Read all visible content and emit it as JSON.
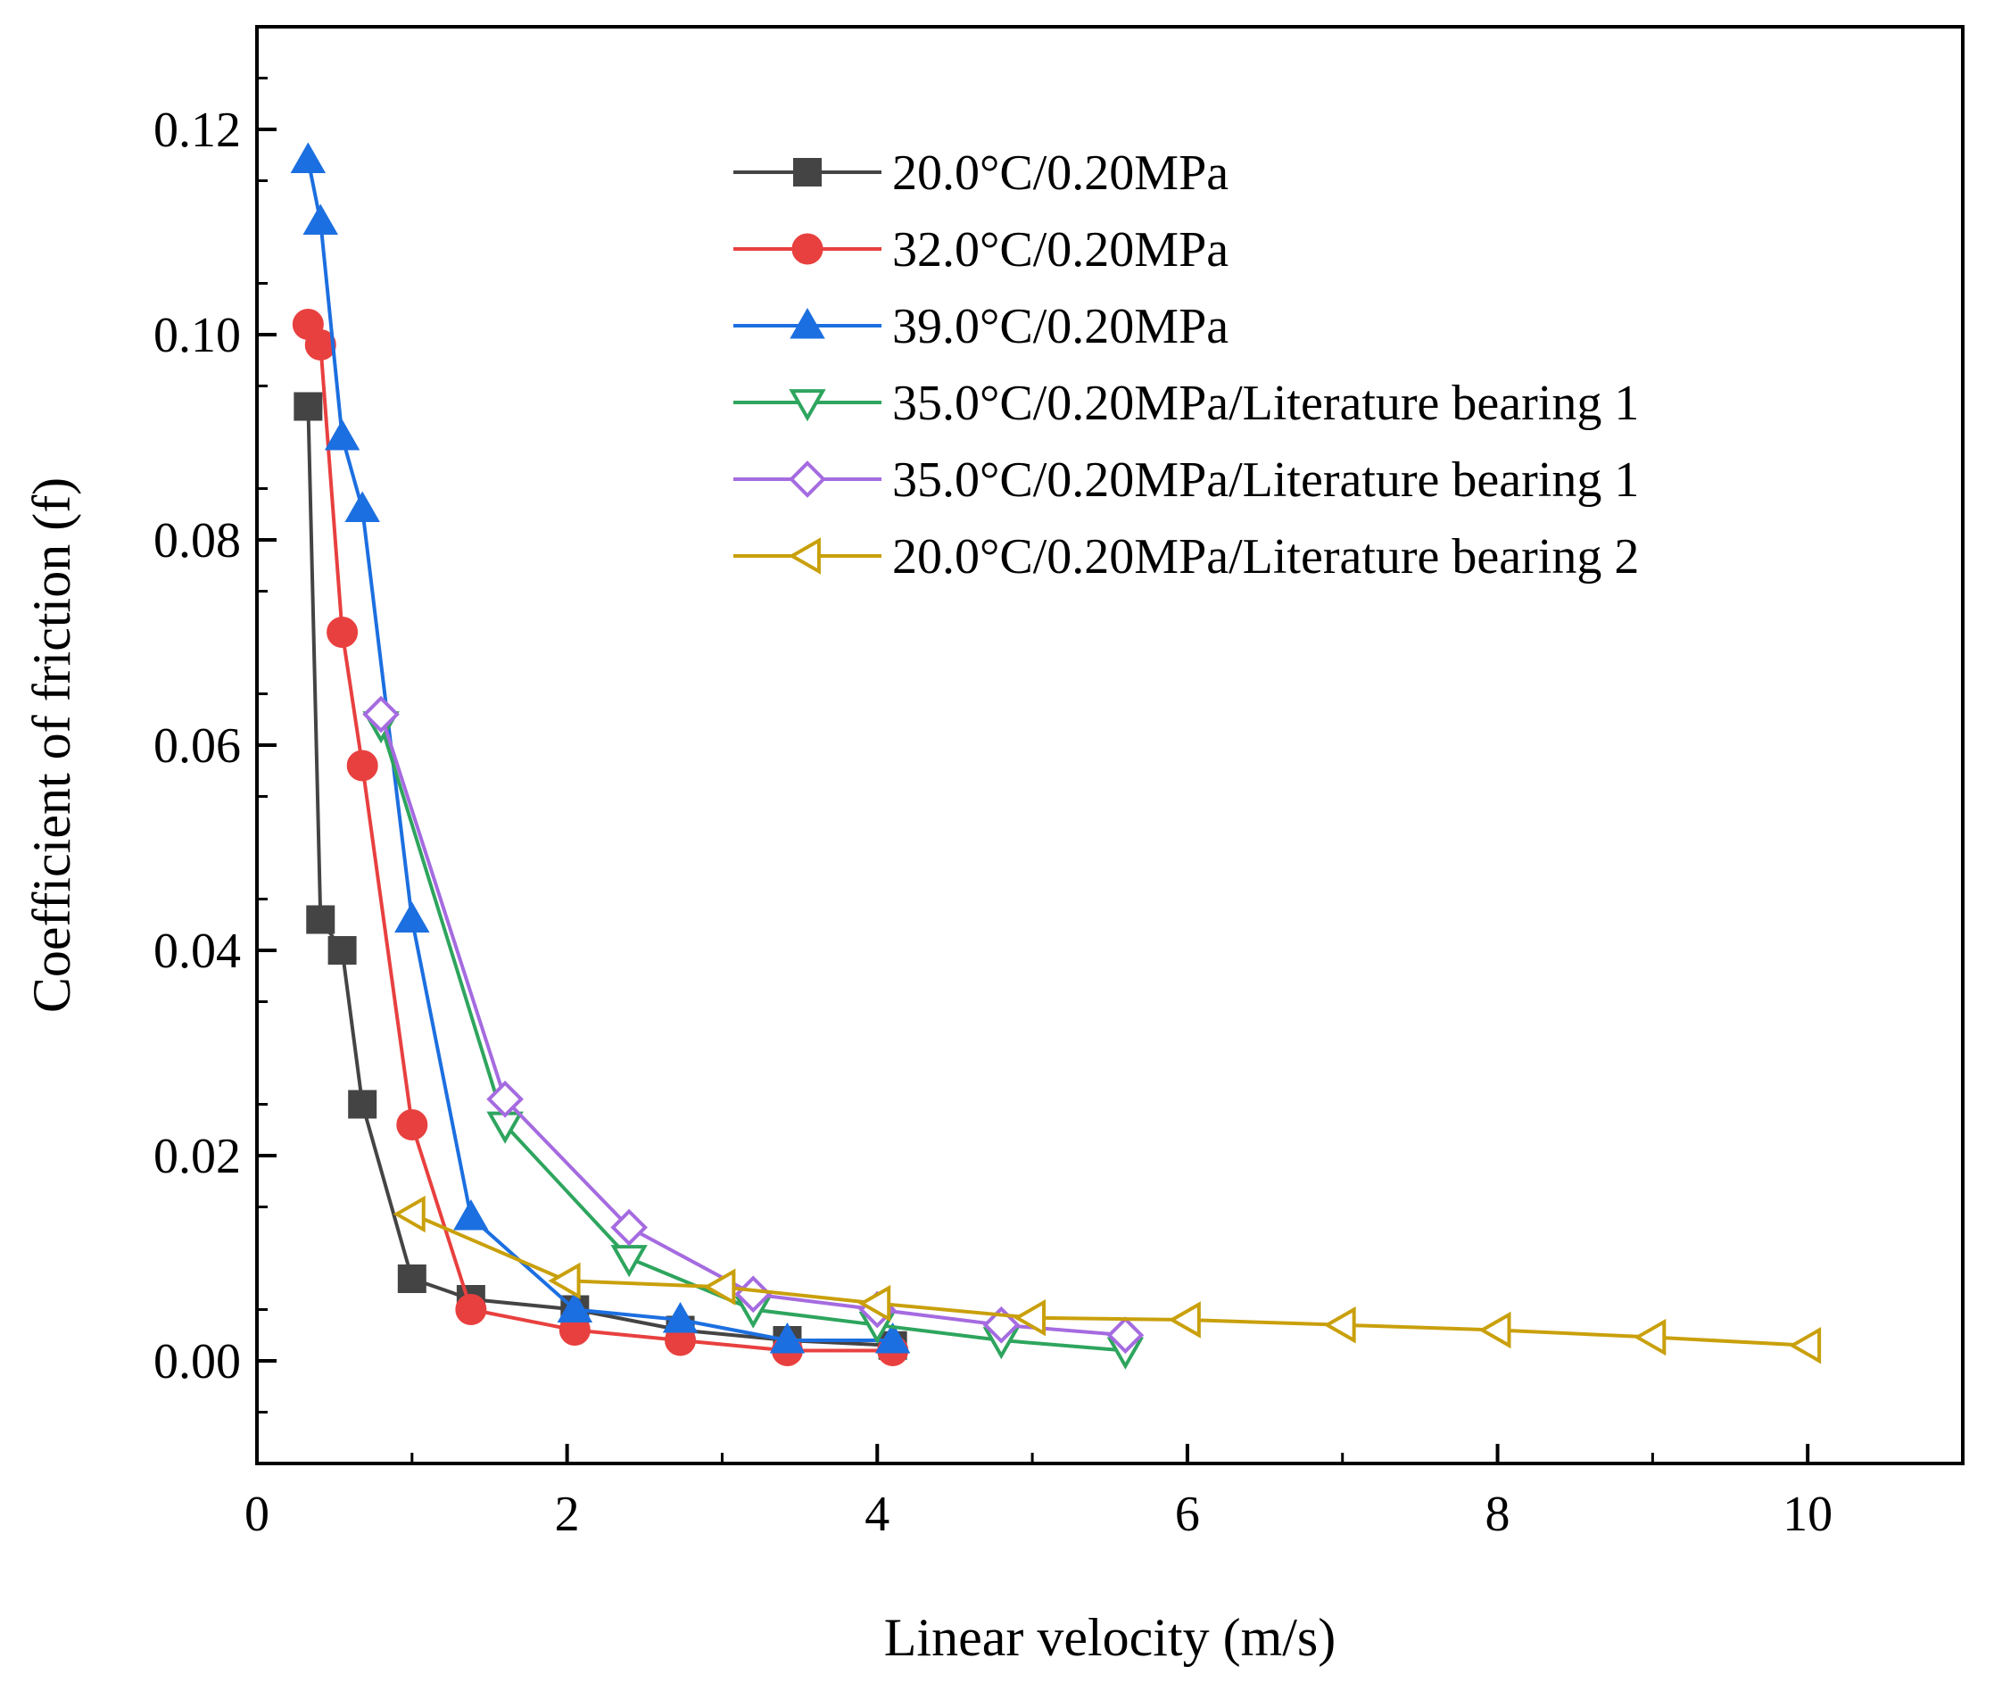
{
  "chart_data": {
    "type": "line",
    "title": "",
    "xlabel": "Linear velocity (m/s)",
    "ylabel": "Coefficient of friction (f)",
    "xlim": [
      0,
      11
    ],
    "ylim": [
      -0.01,
      0.13
    ],
    "xticks": [
      0,
      2,
      4,
      6,
      8,
      10
    ],
    "xtick_labels": [
      "0",
      "2",
      "4",
      "6",
      "8",
      "10"
    ],
    "yticks": [
      0.0,
      0.02,
      0.04,
      0.06,
      0.08,
      0.1,
      0.12
    ],
    "ytick_labels": [
      "0.00",
      "0.02",
      "0.04",
      "0.06",
      "0.08",
      "0.10",
      "0.12"
    ],
    "legend_position": "top-right",
    "grid": false,
    "series": [
      {
        "name": "20.0°C/0.20MPa",
        "color": "#444444",
        "marker": "square",
        "filled": true,
        "x": [
          0.33,
          0.41,
          0.55,
          0.68,
          1.0,
          1.38,
          2.05,
          2.73,
          3.42,
          4.1
        ],
        "y": [
          0.093,
          0.043,
          0.04,
          0.025,
          0.008,
          0.006,
          0.005,
          0.003,
          0.002,
          0.0015
        ]
      },
      {
        "name": "32.0°C/0.20MPa",
        "color": "#e8403f",
        "marker": "circle",
        "filled": true,
        "x": [
          0.33,
          0.41,
          0.55,
          0.68,
          1.0,
          1.38,
          2.05,
          2.73,
          3.42,
          4.1
        ],
        "y": [
          0.101,
          0.099,
          0.071,
          0.058,
          0.023,
          0.005,
          0.003,
          0.002,
          0.001,
          0.001
        ]
      },
      {
        "name": "39.0°C/0.20MPa",
        "color": "#1c6fe0",
        "marker": "triangle-up",
        "filled": true,
        "x": [
          0.33,
          0.41,
          0.55,
          0.68,
          1.0,
          1.38,
          2.05,
          2.73,
          3.42,
          4.1
        ],
        "y": [
          0.117,
          0.111,
          0.09,
          0.083,
          0.043,
          0.014,
          0.005,
          0.004,
          0.002,
          0.002
        ]
      },
      {
        "name": "35.0°C/0.20MPa/Literature bearing 1",
        "color": "#2ea55e",
        "marker": "triangle-down",
        "filled": false,
        "x": [
          0.8,
          1.6,
          2.4,
          3.2,
          4.0,
          4.8,
          5.6
        ],
        "y": [
          0.062,
          0.023,
          0.01,
          0.005,
          0.0035,
          0.002,
          0.001
        ]
      },
      {
        "name": "35.0°C/0.20MPa/Literature bearing 1",
        "color": "#a56be0",
        "marker": "diamond",
        "filled": false,
        "x": [
          0.8,
          1.6,
          2.4,
          3.2,
          4.0,
          4.8,
          5.6
        ],
        "y": [
          0.063,
          0.0255,
          0.013,
          0.0065,
          0.005,
          0.0035,
          0.0025
        ]
      },
      {
        "name": "20.0°C/0.20MPa/Literature bearing 2",
        "color": "#c9a00c",
        "marker": "triangle-left",
        "filled": false,
        "x": [
          1.0,
          2.0,
          3.0,
          4.0,
          5.0,
          6.0,
          7.0,
          8.0,
          9.0,
          10.0
        ],
        "y": [
          0.0143,
          0.0078,
          0.0072,
          0.0056,
          0.0042,
          0.004,
          0.0035,
          0.003,
          0.0023,
          0.0015
        ]
      }
    ]
  }
}
